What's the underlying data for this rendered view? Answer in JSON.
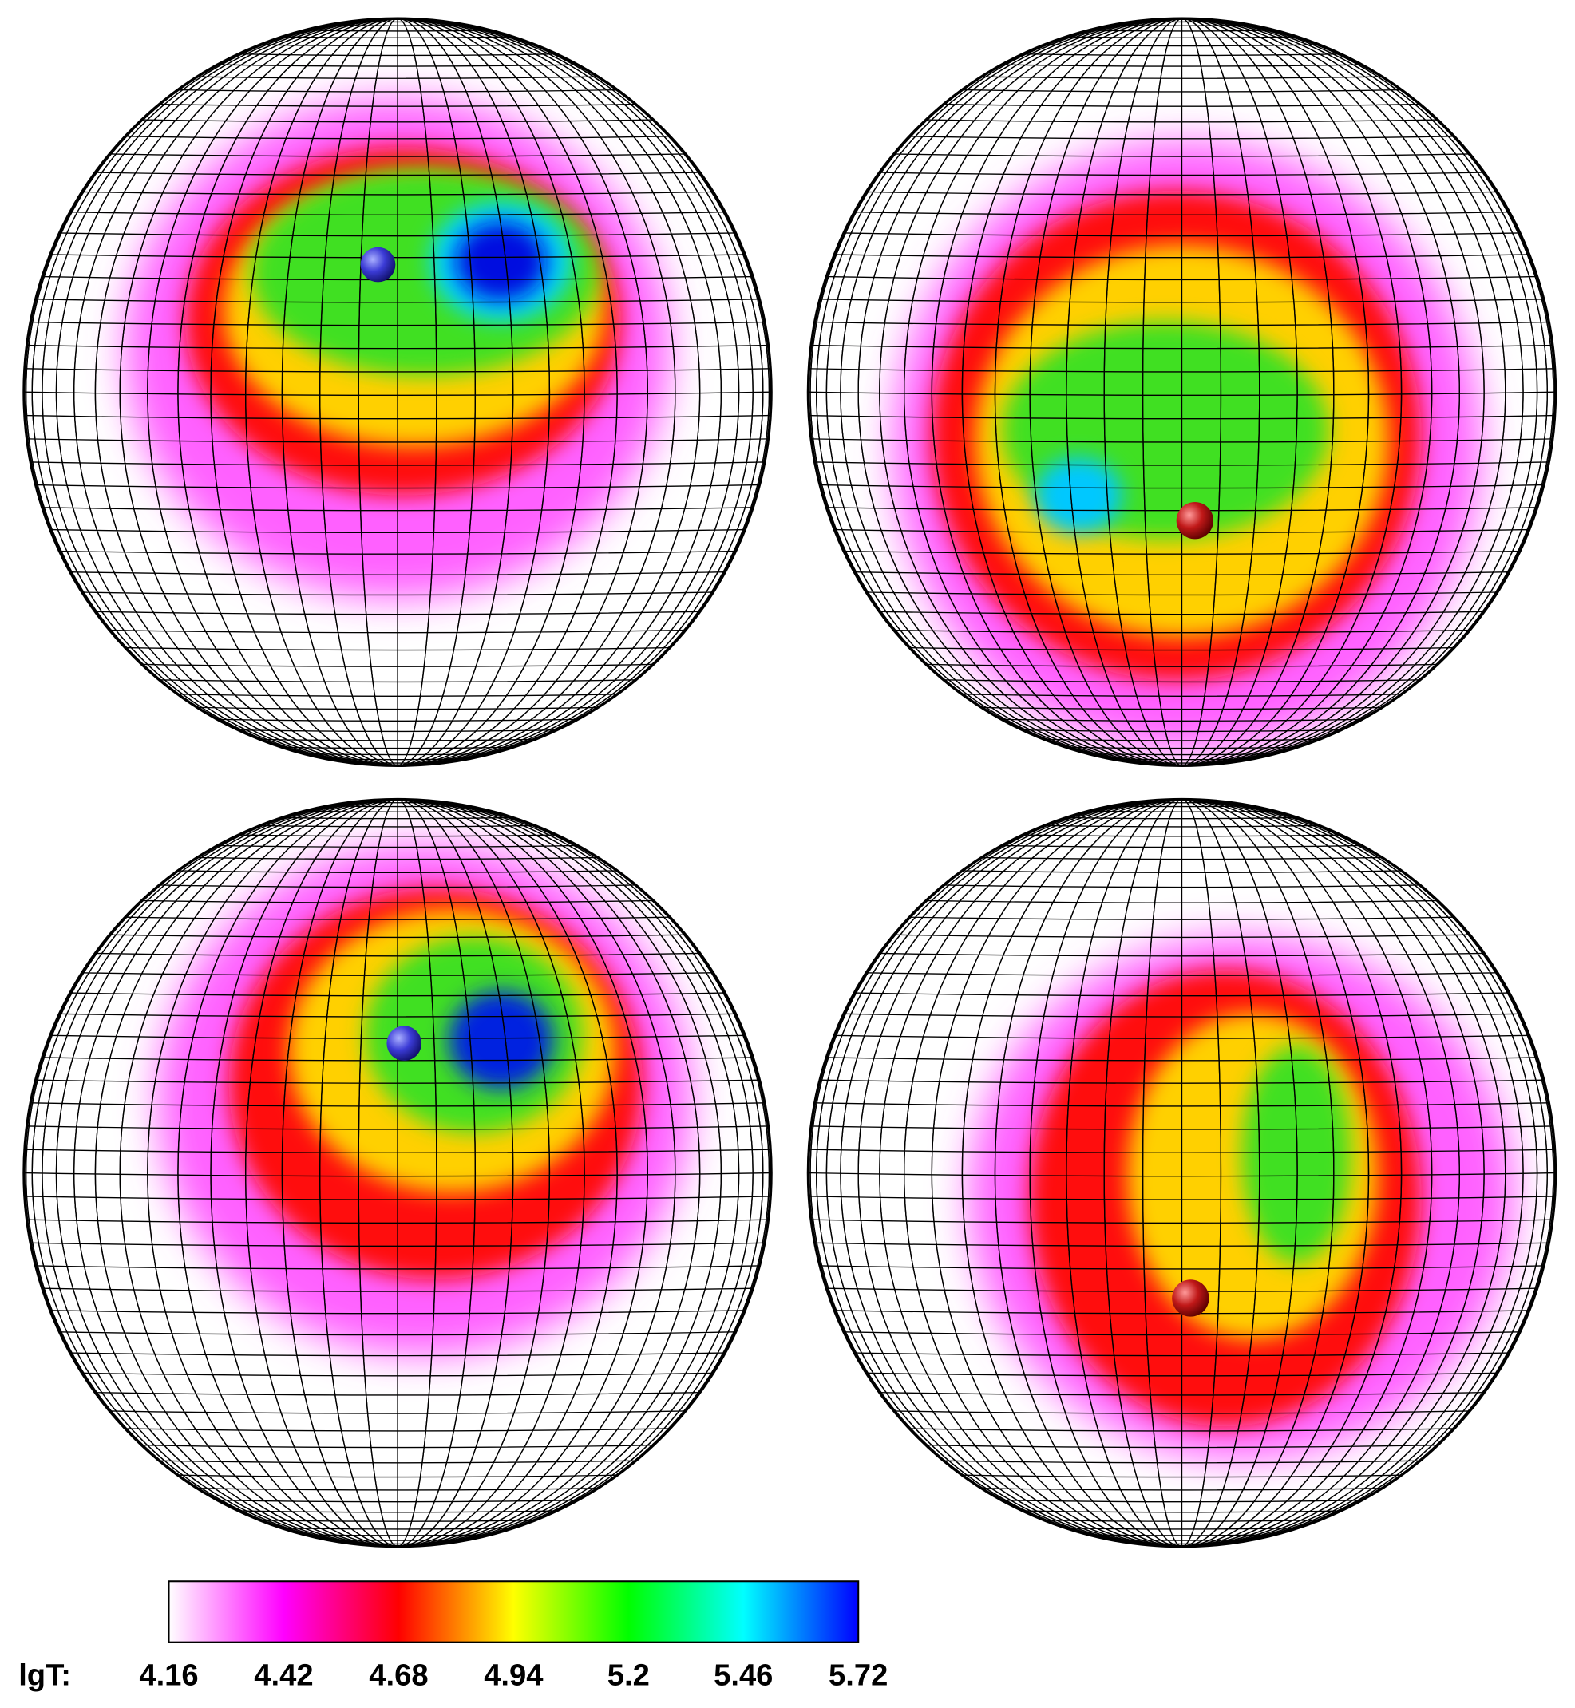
{
  "chart_data": {
    "type": "colorbar",
    "label": "lgT:",
    "clim": [
      4.16,
      5.72
    ],
    "ticks": [
      4.16,
      4.42,
      4.68,
      4.94,
      5.2,
      5.46,
      5.72
    ],
    "colors": [
      "#ffffff",
      "#ff00ff",
      "#ff0000",
      "#ffff00",
      "#00ff00",
      "#00ffff",
      "#0000ff"
    ]
  }
}
